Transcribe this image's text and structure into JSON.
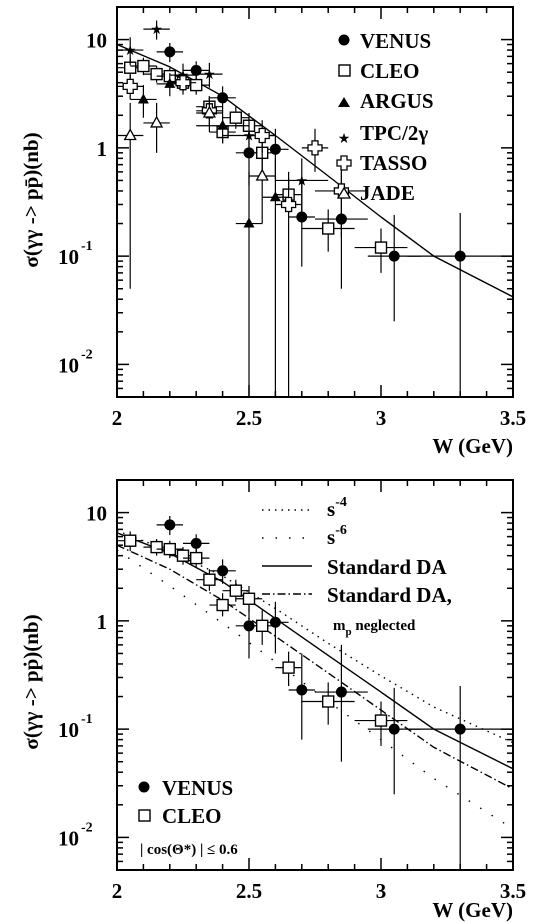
{
  "figure": {
    "background": "#ffffff",
    "ink": "#000000"
  },
  "chart_data": [
    {
      "type": "scatter",
      "ylabel": "σ(γγ -> pp̄)(nb)",
      "xlabel": "W (GeV)",
      "xlim": [
        2.0,
        3.5
      ],
      "ylim": [
        0.005,
        20
      ],
      "yscale": "log",
      "x_ticks": [
        2,
        2.5,
        3,
        3.5
      ],
      "x_tick_labels": [
        "2",
        "2.5",
        "3",
        "3.5"
      ],
      "y_ticks": [
        0.01,
        0.1,
        1,
        10
      ],
      "y_tick_labels": [
        {
          "base": "10",
          "exp": "-2"
        },
        {
          "base": "10",
          "exp": "-1"
        },
        {
          "base": "1",
          "exp": ""
        },
        {
          "base": "10",
          "exp": ""
        }
      ],
      "legend_position": "top-right",
      "series": [
        {
          "name": "VENUS",
          "marker": "filled-circle",
          "points": [
            {
              "x": 2.2,
              "y": 7.7,
              "ylo": 6.2,
              "yhi": 9.3,
              "xerr": 0.05
            },
            {
              "x": 2.3,
              "y": 5.2,
              "ylo": 4.2,
              "yhi": 6.3,
              "xerr": 0.05
            },
            {
              "x": 2.4,
              "y": 2.9,
              "ylo": 2.2,
              "yhi": 3.7,
              "xerr": 0.05
            },
            {
              "x": 2.5,
              "y": 0.9,
              "ylo": 0.45,
              "yhi": 1.6,
              "xerr": 0.05
            },
            {
              "x": 2.6,
              "y": 0.97,
              "ylo": 0.5,
              "yhi": 1.5,
              "xerr": 0.05
            },
            {
              "x": 2.7,
              "y": 0.23,
              "ylo": 0.08,
              "yhi": 0.5,
              "xerr": 0.05
            },
            {
              "x": 2.85,
              "y": 0.22,
              "ylo": 0.05,
              "yhi": 0.6,
              "xerr": 0.1
            },
            {
              "x": 3.05,
              "y": 0.1,
              "ylo": 0.025,
              "yhi": 0.24,
              "xerr": 0.1
            },
            {
              "x": 3.3,
              "y": 0.1,
              "ylo": 0.005,
              "yhi": 0.25,
              "xerr": 0.2
            }
          ]
        },
        {
          "name": "CLEO",
          "marker": "open-square",
          "points": [
            {
              "x": 2.05,
              "y": 5.5,
              "ylo": 4.4,
              "yhi": 6.7,
              "xerr": 0.05
            },
            {
              "x": 2.1,
              "y": 5.7,
              "ylo": 4.7,
              "yhi": 6.8,
              "xerr": 0.05
            },
            {
              "x": 2.15,
              "y": 4.8,
              "ylo": 4.0,
              "yhi": 5.7,
              "xerr": 0.05
            },
            {
              "x": 2.2,
              "y": 4.6,
              "ylo": 3.8,
              "yhi": 5.5,
              "xerr": 0.05
            },
            {
              "x": 2.25,
              "y": 4.0,
              "ylo": 3.3,
              "yhi": 4.8,
              "xerr": 0.05
            },
            {
              "x": 2.3,
              "y": 3.8,
              "ylo": 3.1,
              "yhi": 4.6,
              "xerr": 0.05
            },
            {
              "x": 2.35,
              "y": 2.4,
              "ylo": 1.9,
              "yhi": 3.0,
              "xerr": 0.05
            },
            {
              "x": 2.4,
              "y": 1.4,
              "ylo": 1.1,
              "yhi": 1.8,
              "xerr": 0.05
            },
            {
              "x": 2.45,
              "y": 1.9,
              "ylo": 1.5,
              "yhi": 2.4,
              "xerr": 0.05
            },
            {
              "x": 2.5,
              "y": 1.6,
              "ylo": 1.2,
              "yhi": 2.1,
              "xerr": 0.05
            },
            {
              "x": 2.55,
              "y": 0.9,
              "ylo": 0.6,
              "yhi": 1.25,
              "xerr": 0.05
            },
            {
              "x": 2.65,
              "y": 0.37,
              "ylo": 0.25,
              "yhi": 0.52,
              "xerr": 0.05
            },
            {
              "x": 2.8,
              "y": 0.18,
              "ylo": 0.11,
              "yhi": 0.27,
              "xerr": 0.1
            },
            {
              "x": 3.0,
              "y": 0.12,
              "ylo": 0.07,
              "yhi": 0.18,
              "xerr": 0.1
            }
          ]
        },
        {
          "name": "ARGUS",
          "marker": "filled-triangle",
          "points": [
            {
              "x": 2.1,
              "y": 2.8,
              "ylo": 1.9,
              "yhi": 3.8,
              "xerr": 0.05
            },
            {
              "x": 2.2,
              "y": 3.9,
              "ylo": 3.0,
              "yhi": 4.9,
              "xerr": 0.05
            },
            {
              "x": 2.4,
              "y": 1.6,
              "ylo": 1.1,
              "yhi": 2.2,
              "xerr": 0.1
            },
            {
              "x": 2.5,
              "y": 0.2,
              "ylo": 0.005,
              "yhi": 0.6,
              "xerr": 0.05
            },
            {
              "x": 2.6,
              "y": 0.35,
              "ylo": 0.005,
              "yhi": 0.8,
              "xerr": 0.05
            }
          ]
        },
        {
          "name": "TPC/2γ",
          "marker": "star",
          "points": [
            {
              "x": 2.05,
              "y": 8.0,
              "ylo": 5.8,
              "yhi": 10.5,
              "xerr": 0.05
            },
            {
              "x": 2.15,
              "y": 12.5,
              "ylo": 10,
              "yhi": 15,
              "xerr": 0.05
            },
            {
              "x": 2.25,
              "y": 4.7,
              "ylo": 3.5,
              "yhi": 6.0,
              "xerr": 0.05
            },
            {
              "x": 2.35,
              "y": 4.8,
              "ylo": 3.6,
              "yhi": 6.1,
              "xerr": 0.05
            },
            {
              "x": 2.5,
              "y": 1.3,
              "ylo": 0.8,
              "yhi": 1.9,
              "xerr": 0.1
            },
            {
              "x": 2.7,
              "y": 0.5,
              "ylo": 0.25,
              "yhi": 0.8,
              "xerr": 0.1
            }
          ]
        },
        {
          "name": "TASSO",
          "marker": "open-cross",
          "points": [
            {
              "x": 2.05,
              "y": 3.7,
              "ylo": 2.8,
              "yhi": 4.7,
              "xerr": 0.05
            },
            {
              "x": 2.25,
              "y": 4.0,
              "ylo": 3.1,
              "yhi": 5.0,
              "xerr": 0.05
            },
            {
              "x": 2.35,
              "y": 2.2,
              "ylo": 1.6,
              "yhi": 2.9,
              "xerr": 0.05
            },
            {
              "x": 2.55,
              "y": 1.3,
              "ylo": 0.9,
              "yhi": 1.8,
              "xerr": 0.05
            },
            {
              "x": 2.65,
              "y": 0.3,
              "ylo": 0.005,
              "yhi": 0.6,
              "xerr": 0.05
            },
            {
              "x": 2.75,
              "y": 1.0,
              "ylo": 0.6,
              "yhi": 1.5,
              "xerr": 0.05
            },
            {
              "x": 2.85,
              "y": 0.4,
              "ylo": 0.15,
              "yhi": 0.75,
              "xerr": 0.1
            }
          ]
        },
        {
          "name": "JADE",
          "marker": "open-triangle",
          "points": [
            {
              "x": 2.05,
              "y": 1.3,
              "ylo": 0.05,
              "yhi": 2.6,
              "xerr": 0.05
            },
            {
              "x": 2.15,
              "y": 1.7,
              "ylo": 0.9,
              "yhi": 2.6,
              "xerr": 0.05
            },
            {
              "x": 2.35,
              "y": 2.1,
              "ylo": 1.4,
              "yhi": 3.0,
              "xerr": 0.05
            },
            {
              "x": 2.55,
              "y": 0.55,
              "ylo": 0.2,
              "yhi": 1.0,
              "xerr": 0.05
            }
          ]
        }
      ],
      "curves": [
        {
          "style": "solid",
          "points": [
            [
              2.0,
              9.0
            ],
            [
              2.2,
              5.6
            ],
            [
              2.4,
              3.0
            ],
            [
              2.6,
              1.3
            ],
            [
              2.8,
              0.55
            ],
            [
              3.0,
              0.23
            ],
            [
              3.2,
              0.1
            ],
            [
              3.5,
              0.042
            ]
          ]
        }
      ]
    },
    {
      "type": "scatter",
      "ylabel": "σ(γγ -> pṗ)(nb)",
      "xlabel": "W (GeV)",
      "xlim": [
        2.0,
        3.5
      ],
      "ylim": [
        0.005,
        20
      ],
      "yscale": "log",
      "x_ticks": [
        2,
        2.5,
        3,
        3.5
      ],
      "x_tick_labels": [
        "2",
        "2.5",
        "3",
        "3.5"
      ],
      "y_ticks": [
        0.01,
        0.1,
        1,
        10
      ],
      "y_tick_labels": [
        {
          "base": "10",
          "exp": "-2"
        },
        {
          "base": "10",
          "exp": "-1"
        },
        {
          "base": "1",
          "exp": ""
        },
        {
          "base": "10",
          "exp": ""
        }
      ],
      "annotation": "| cos(Θ*) | ≤ 0.6",
      "legend_position": "top-right (curves), bottom-left (data)",
      "series": [
        {
          "name": "VENUS",
          "marker": "filled-circle",
          "points": [
            {
              "x": 2.2,
              "y": 7.7,
              "ylo": 6.2,
              "yhi": 9.3,
              "xerr": 0.05
            },
            {
              "x": 2.3,
              "y": 5.2,
              "ylo": 4.2,
              "yhi": 6.3,
              "xerr": 0.05
            },
            {
              "x": 2.4,
              "y": 2.9,
              "ylo": 2.2,
              "yhi": 3.7,
              "xerr": 0.05
            },
            {
              "x": 2.5,
              "y": 0.9,
              "ylo": 0.45,
              "yhi": 1.6,
              "xerr": 0.05
            },
            {
              "x": 2.6,
              "y": 0.97,
              "ylo": 0.5,
              "yhi": 1.5,
              "xerr": 0.05
            },
            {
              "x": 2.7,
              "y": 0.23,
              "ylo": 0.08,
              "yhi": 0.5,
              "xerr": 0.05
            },
            {
              "x": 2.85,
              "y": 0.22,
              "ylo": 0.05,
              "yhi": 0.6,
              "xerr": 0.1
            },
            {
              "x": 3.05,
              "y": 0.1,
              "ylo": 0.025,
              "yhi": 0.24,
              "xerr": 0.1
            },
            {
              "x": 3.3,
              "y": 0.1,
              "ylo": 0.005,
              "yhi": 0.25,
              "xerr": 0.2
            }
          ]
        },
        {
          "name": "CLEO",
          "marker": "open-square",
          "points": [
            {
              "x": 2.05,
              "y": 5.5,
              "ylo": 4.4,
              "yhi": 6.7,
              "xerr": 0.05
            },
            {
              "x": 2.15,
              "y": 4.8,
              "ylo": 4.0,
              "yhi": 5.7,
              "xerr": 0.05
            },
            {
              "x": 2.2,
              "y": 4.6,
              "ylo": 3.8,
              "yhi": 5.5,
              "xerr": 0.05
            },
            {
              "x": 2.25,
              "y": 4.0,
              "ylo": 3.3,
              "yhi": 4.8,
              "xerr": 0.05
            },
            {
              "x": 2.3,
              "y": 3.8,
              "ylo": 3.1,
              "yhi": 4.6,
              "xerr": 0.05
            },
            {
              "x": 2.35,
              "y": 2.4,
              "ylo": 1.9,
              "yhi": 3.0,
              "xerr": 0.05
            },
            {
              "x": 2.4,
              "y": 1.4,
              "ylo": 1.1,
              "yhi": 1.8,
              "xerr": 0.05
            },
            {
              "x": 2.45,
              "y": 1.9,
              "ylo": 1.5,
              "yhi": 2.4,
              "xerr": 0.05
            },
            {
              "x": 2.5,
              "y": 1.6,
              "ylo": 1.2,
              "yhi": 2.1,
              "xerr": 0.05
            },
            {
              "x": 2.55,
              "y": 0.9,
              "ylo": 0.6,
              "yhi": 1.25,
              "xerr": 0.05
            },
            {
              "x": 2.65,
              "y": 0.37,
              "ylo": 0.25,
              "yhi": 0.52,
              "xerr": 0.05
            },
            {
              "x": 2.8,
              "y": 0.18,
              "ylo": 0.11,
              "yhi": 0.27,
              "xerr": 0.1
            },
            {
              "x": 3.0,
              "y": 0.12,
              "ylo": 0.07,
              "yhi": 0.18,
              "xerr": 0.1
            }
          ]
        }
      ],
      "curves": [
        {
          "name_base": "s",
          "name_exp": "-4",
          "style": "dotted",
          "points": [
            [
              2.0,
              6.8
            ],
            [
              2.2,
              4.4
            ],
            [
              2.4,
              2.6
            ],
            [
              2.6,
              1.3
            ],
            [
              2.8,
              0.62
            ],
            [
              3.0,
              0.31
            ],
            [
              3.2,
              0.16
            ],
            [
              3.5,
              0.075
            ]
          ]
        },
        {
          "name_base": "s",
          "name_exp": "-6",
          "style": "dotted",
          "points": [
            [
              2.0,
              4.5
            ],
            [
              2.2,
              2.1
            ],
            [
              2.4,
              0.95
            ],
            [
              2.6,
              0.42
            ],
            [
              2.8,
              0.18
            ],
            [
              3.0,
              0.08
            ],
            [
              3.2,
              0.035
            ],
            [
              3.5,
              0.012
            ]
          ]
        },
        {
          "name": "Standard DA",
          "style": "solid",
          "points": [
            [
              2.0,
              6.5
            ],
            [
              2.2,
              4.2
            ],
            [
              2.4,
              2.3
            ],
            [
              2.6,
              1.05
            ],
            [
              2.8,
              0.48
            ],
            [
              3.0,
              0.22
            ],
            [
              3.2,
              0.1
            ],
            [
              3.5,
              0.043
            ]
          ]
        },
        {
          "name": "Standard DA,",
          "name_sub_base": "m",
          "name_sub_sub": "p",
          "name_sub_rest": " neglected",
          "style": "dashdot",
          "points": [
            [
              2.0,
              5.0
            ],
            [
              2.2,
              3.0
            ],
            [
              2.4,
              1.55
            ],
            [
              2.6,
              0.72
            ],
            [
              2.8,
              0.33
            ],
            [
              3.0,
              0.15
            ],
            [
              3.2,
              0.068
            ],
            [
              3.5,
              0.028
            ]
          ]
        }
      ]
    }
  ]
}
